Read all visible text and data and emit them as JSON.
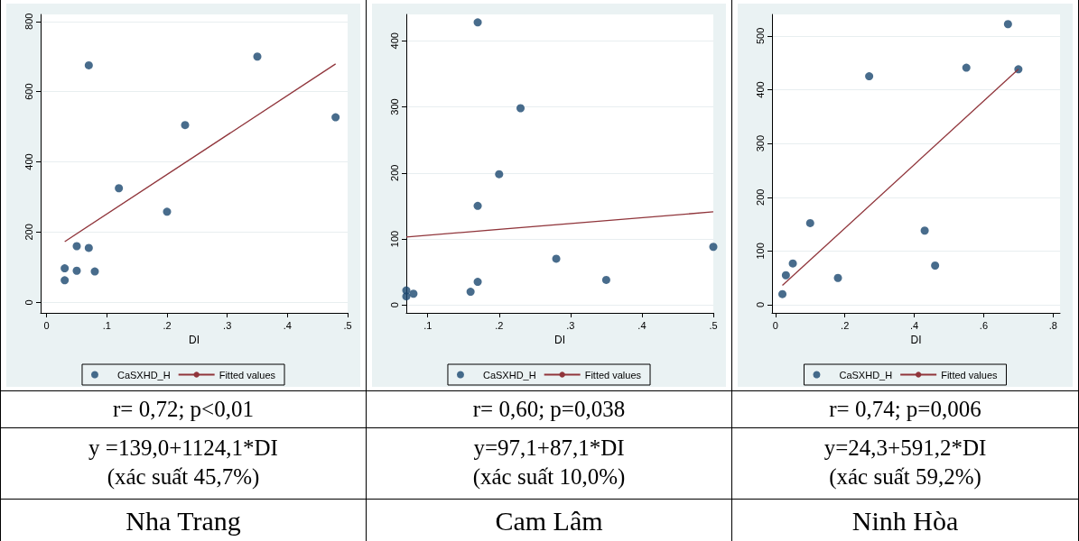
{
  "chart_data": [
    {
      "type": "scatter",
      "xlabel": "DI",
      "grid": "y",
      "legend": "bottom",
      "marker": "circle",
      "xlim": [
        -0.01,
        0.5
      ],
      "ylim": [
        -30,
        820
      ],
      "xticks": [
        0,
        {
          "value": 0.1,
          "label": ".1"
        },
        {
          "value": 0.2,
          "label": ".2"
        },
        {
          "value": 0.3,
          "label": ".3"
        },
        {
          "value": 0.4,
          "label": ".4"
        },
        {
          "value": 0.5,
          "label": ".5"
        }
      ],
      "yticks": [
        0,
        200,
        400,
        600,
        800
      ],
      "series": [
        {
          "name": "CaSXHD_H",
          "color": "#1a476f",
          "x": [
            0.03,
            0.03,
            0.05,
            0.05,
            0.07,
            0.07,
            0.08,
            0.12,
            0.2,
            0.23,
            0.35,
            0.48
          ],
          "values": [
            97,
            63,
            160,
            90,
            675,
            155,
            88,
            325,
            258,
            505,
            700,
            527
          ]
        },
        {
          "name": "Fitted values",
          "type": "line",
          "marker": "none",
          "color": "#90353b",
          "x": [
            0.03,
            0.48
          ],
          "values": [
            173,
            679
          ]
        }
      ],
      "annotations": [
        "r= 0,72; p<0,01",
        "y =139,0+1124,1*DI",
        "(xác suất 45,7%)",
        "Nha Trang"
      ]
    },
    {
      "type": "scatter",
      "xlabel": "DI",
      "grid": "y",
      "legend": "bottom",
      "marker": "circle",
      "xlim": [
        0.07,
        0.5
      ],
      "ylim": [
        -12,
        440
      ],
      "xticks": [
        {
          "value": 0.1,
          "label": ".1"
        },
        {
          "value": 0.2,
          "label": ".2"
        },
        {
          "value": 0.3,
          "label": ".3"
        },
        {
          "value": 0.4,
          "label": ".4"
        },
        {
          "value": 0.5,
          "label": ".5"
        }
      ],
      "yticks": [
        0,
        100,
        200,
        300,
        400
      ],
      "series": [
        {
          "name": "CaSXHD_H",
          "color": "#1a476f",
          "x": [
            0.07,
            0.07,
            0.08,
            0.16,
            0.17,
            0.17,
            0.17,
            0.2,
            0.23,
            0.28,
            0.35,
            0.5
          ],
          "values": [
            22,
            13,
            17,
            20,
            428,
            150,
            35,
            198,
            298,
            70,
            38,
            88
          ]
        },
        {
          "name": "Fitted values",
          "type": "line",
          "marker": "none",
          "color": "#90353b",
          "x": [
            0.07,
            0.5
          ],
          "values": [
            103,
            141
          ]
        }
      ],
      "annotations": [
        "r= 0,60; p=0,038",
        "y=97,1+87,1*DI",
        "(xác suất 10,0%)",
        "Cam Lâm"
      ]
    },
    {
      "type": "scatter",
      "xlabel": "DI",
      "grid": "y",
      "legend": "bottom",
      "marker": "circle",
      "xlim": [
        -0.01,
        0.82
      ],
      "ylim": [
        -15,
        540
      ],
      "xticks": [
        0,
        {
          "value": 0.2,
          "label": ".2"
        },
        {
          "value": 0.4,
          "label": ".4"
        },
        {
          "value": 0.6,
          "label": ".6"
        },
        {
          "value": 0.8,
          "label": ".8"
        }
      ],
      "yticks": [
        0,
        100,
        200,
        300,
        400,
        500
      ],
      "series": [
        {
          "name": "CaSXHD_H",
          "color": "#1a476f",
          "x": [
            0.02,
            0.03,
            0.05,
            0.1,
            0.18,
            0.27,
            0.43,
            0.46,
            0.55,
            0.67,
            0.7
          ],
          "values": [
            20,
            55,
            77,
            152,
            50,
            425,
            138,
            73,
            441,
            522,
            438
          ]
        },
        {
          "name": "Fitted values",
          "type": "line",
          "marker": "none",
          "color": "#90353b",
          "x": [
            0.02,
            0.7
          ],
          "values": [
            36,
            438
          ]
        }
      ],
      "annotations": [
        "r= 0,74; p=0,006",
        "y=24,3+591,2*DI",
        "(xác suất 59,2%)",
        "Ninh Hòa"
      ]
    }
  ]
}
